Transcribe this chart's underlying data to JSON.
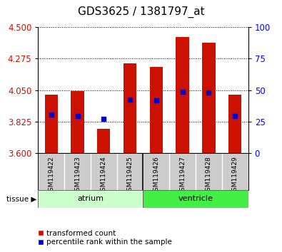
{
  "title": "GDS3625 / 1381797_at",
  "samples": [
    "GSM119422",
    "GSM119423",
    "GSM119424",
    "GSM119425",
    "GSM119426",
    "GSM119427",
    "GSM119428",
    "GSM119429"
  ],
  "bar_bottoms": [
    3.6,
    3.6,
    3.6,
    3.6,
    3.6,
    3.6,
    3.6,
    3.6
  ],
  "bar_tops": [
    4.02,
    4.045,
    3.775,
    4.24,
    4.215,
    4.43,
    4.39,
    4.02
  ],
  "percentile_values": [
    3.875,
    3.865,
    3.845,
    3.985,
    3.975,
    4.04,
    4.035,
    3.865
  ],
  "ylim_left": [
    3.6,
    4.5
  ],
  "yticks_left": [
    3.6,
    3.825,
    4.05,
    4.275,
    4.5
  ],
  "yticks_right": [
    0,
    25,
    50,
    75,
    100
  ],
  "bar_color": "#cc1100",
  "dot_color": "#0000cc",
  "atrium_color": "#ccffcc",
  "ventricle_color": "#44ee44",
  "tissue_label": "tissue",
  "legend_bar_label": "transformed count",
  "legend_dot_label": "percentile rank within the sample",
  "bar_width": 0.5,
  "xlabel_area_color": "#cccccc",
  "title_fontsize": 11,
  "tick_fontsize": 8.5,
  "sample_fontsize": 6.5,
  "tissue_fontsize": 8,
  "legend_fontsize": 7.5
}
